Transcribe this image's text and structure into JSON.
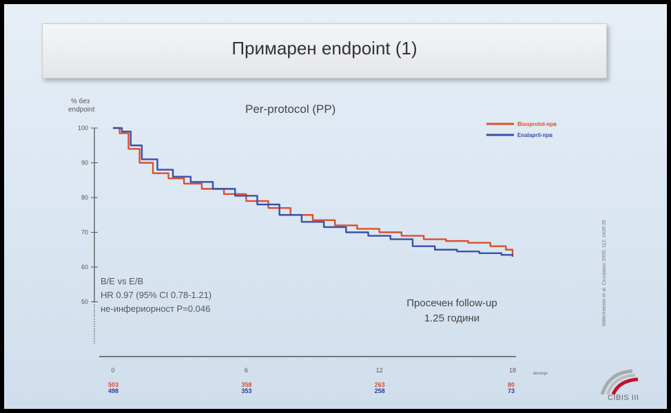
{
  "slide": {
    "title": "Примарен endpoint (1)",
    "y_axis_label_line1": "% без",
    "y_axis_label_line2": "endpoint",
    "stats_line1": "B/E vs E/B",
    "stats_line2": "HR 0.97 (95% CI 0.78-1.21)",
    "stats_line3": "не-инфериорност P=0.046",
    "followup_line1": "Просечен follow-up",
    "followup_line2": "1.25 години",
    "citation": "Willenheimer et al. Circulation 2005; 112: 2426-35",
    "x_unit_label": "месеци",
    "logo_text": "CIBIS III"
  },
  "colors": {
    "bisoprolol": "#d9502f",
    "enalapril": "#3a4ea8",
    "background": "#dfe8f2"
  },
  "chart_data": {
    "type": "line",
    "title": "Per-protocol (PP)",
    "xlabel": "месеци",
    "ylabel": "% без endpoint",
    "xlim": [
      0,
      18
    ],
    "ylim": [
      40,
      100
    ],
    "y_ticks": [
      100,
      90,
      80,
      70,
      60,
      50
    ],
    "x_ticks": [
      0,
      6,
      12,
      18
    ],
    "legend_position": "top-right",
    "series": [
      {
        "name": "Bisoprolol-прв",
        "x": [
          0,
          0.3,
          0.7,
          1.2,
          1.8,
          2.5,
          3.2,
          4,
          5,
          6,
          7,
          8,
          9,
          10,
          11,
          12,
          13,
          14,
          15,
          16,
          17,
          17.7,
          18
        ],
        "y": [
          100,
          98.5,
          94,
          90,
          87,
          85.5,
          84,
          82.5,
          81,
          79,
          77,
          75,
          73.5,
          72,
          71,
          70,
          69,
          68,
          67.5,
          67,
          66,
          65,
          63
        ]
      },
      {
        "name": "Enalapril-прв",
        "x": [
          0,
          0.4,
          0.8,
          1.3,
          2,
          2.7,
          3.5,
          4.5,
          5.5,
          6.5,
          7.5,
          8.5,
          9.5,
          10.5,
          11.5,
          12.5,
          13.5,
          14.5,
          15.5,
          16.5,
          17.5,
          18
        ],
        "y": [
          100,
          99,
          95,
          91,
          88,
          86,
          84.5,
          82.5,
          80.5,
          78,
          75,
          73,
          71.5,
          70,
          69,
          68,
          66,
          65,
          64.5,
          64,
          63.5,
          63
        ]
      }
    ],
    "at_risk": [
      {
        "x": 0,
        "bisoprolol": "503",
        "enalapril": "498"
      },
      {
        "x": 6,
        "bisoprolol": "358",
        "enalapril": "353"
      },
      {
        "x": 12,
        "bisoprolol": "263",
        "enalapril": "258"
      },
      {
        "x": 18,
        "bisoprolol": "80",
        "enalapril": "73"
      }
    ]
  }
}
